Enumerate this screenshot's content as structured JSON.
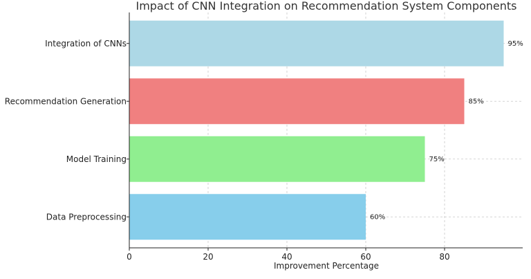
{
  "chart_data": {
    "type": "bar",
    "orientation": "horizontal",
    "title": "Impact of CNN Integration on Recommendation System Components",
    "xlabel": "Improvement Percentage",
    "ylabel": "",
    "categories": [
      "Integration of CNNs",
      "Recommendation Generation",
      "Model Training",
      "Data Preprocessing"
    ],
    "values": [
      95,
      85,
      75,
      60
    ],
    "value_labels": [
      "95%",
      "85%",
      "75%",
      "60%"
    ],
    "colors": [
      "#add8e6",
      "#f08080",
      "#90ee90",
      "#87ceeb"
    ],
    "xlim": [
      0,
      100
    ],
    "xticks": [
      0,
      20,
      40,
      60,
      80
    ],
    "grid": true,
    "legend": "none"
  }
}
